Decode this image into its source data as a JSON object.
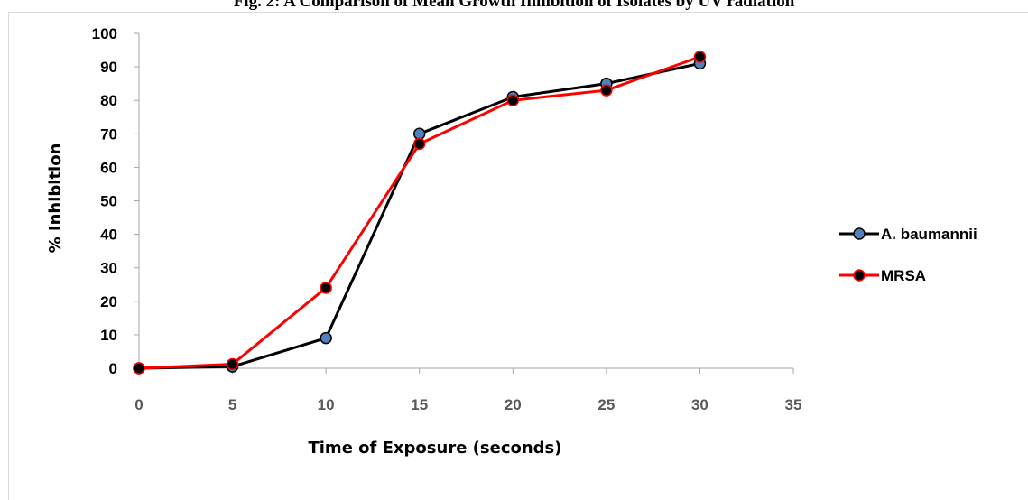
{
  "caption": "Fig. 2: A Comparison of Mean Growth Inhibition of Isolates by UV radiation",
  "chart_data": {
    "type": "line",
    "title": "",
    "xlabel": "Time of Exposure (seconds)",
    "ylabel": "% Inhibition",
    "xlim": [
      0,
      35
    ],
    "ylim": [
      0,
      100
    ],
    "xticks": [
      0,
      5,
      10,
      15,
      20,
      25,
      30,
      35
    ],
    "yticks": [
      0,
      10,
      20,
      30,
      40,
      50,
      60,
      70,
      80,
      90,
      100
    ],
    "grid": false,
    "legend_position": "right",
    "x": [
      0,
      5,
      10,
      15,
      20,
      25,
      30
    ],
    "series": [
      {
        "name": "A. baumannii",
        "values": [
          0,
          0.5,
          9,
          70,
          81,
          85,
          91
        ],
        "line_color": "#000000",
        "marker_color": "#4f81bd"
      },
      {
        "name": "MRSA",
        "values": [
          0,
          1.2,
          24,
          67,
          80,
          83,
          93
        ],
        "line_color": "#ff0000",
        "marker_color": "#000000"
      }
    ]
  }
}
